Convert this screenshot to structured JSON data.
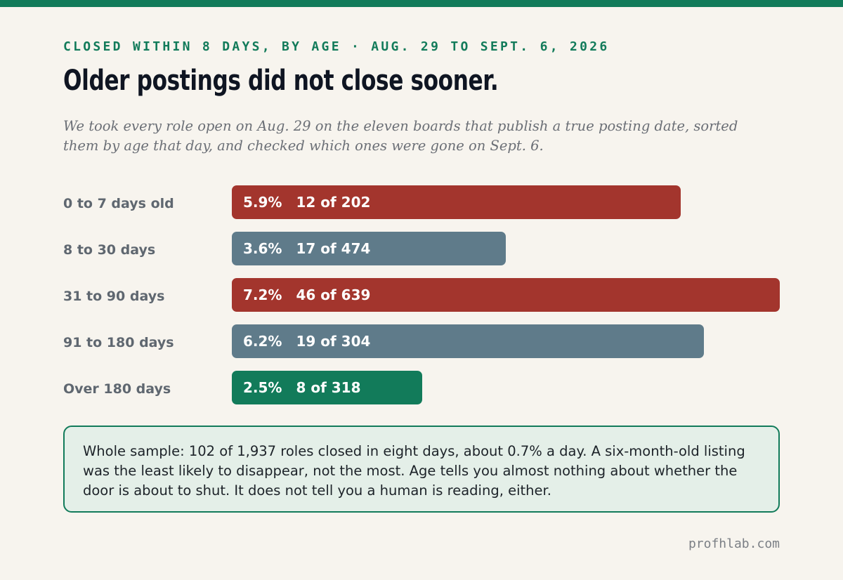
{
  "header": {
    "kicker": "CLOSED WITHIN 8 DAYS, BY AGE · AUG. 29 TO SEPT. 6, 2026",
    "headline": "Older postings did not close sooner.",
    "dek": "We took every role open on Aug. 29 on the eleven boards that publish a true posting date, sorted them by age that day, and checked which ones were gone on Sept. 6."
  },
  "chart_data": {
    "type": "bar",
    "orientation": "horizontal",
    "categories": [
      "0 to 7 days old",
      "8 to 30 days",
      "31 to 90 days",
      "91 to 180 days",
      "Over 180 days"
    ],
    "values": [
      5.9,
      3.6,
      7.2,
      6.2,
      2.5
    ],
    "value_labels": [
      "5.9%",
      "3.6%",
      "7.2%",
      "6.2%",
      "2.5%"
    ],
    "count_labels": [
      "12 of 202",
      "17 of 474",
      "46 of 639",
      "19 of 304",
      "8 of 318"
    ],
    "bar_colors": [
      "#a3352d",
      "#5f7b8a",
      "#a3352d",
      "#5f7b8a",
      "#127b5a"
    ],
    "xlim": [
      0,
      7.2
    ],
    "grid": false,
    "title": "",
    "xlabel": "",
    "ylabel": ""
  },
  "note": {
    "text": "Whole sample: 102 of 1,937 roles closed in eight days, about 0.7% a day. A six-month-old listing was the least likely to disappear, not the most. Age tells you almost nothing about whether the door is about to shut. It does not tell you a human is reading, either."
  },
  "footer": {
    "credit": "profhlab.com"
  },
  "colors": {
    "accent": "#127b5a",
    "background": "#f7f4ee",
    "red": "#a3352d",
    "slate": "#5f7b8a"
  }
}
